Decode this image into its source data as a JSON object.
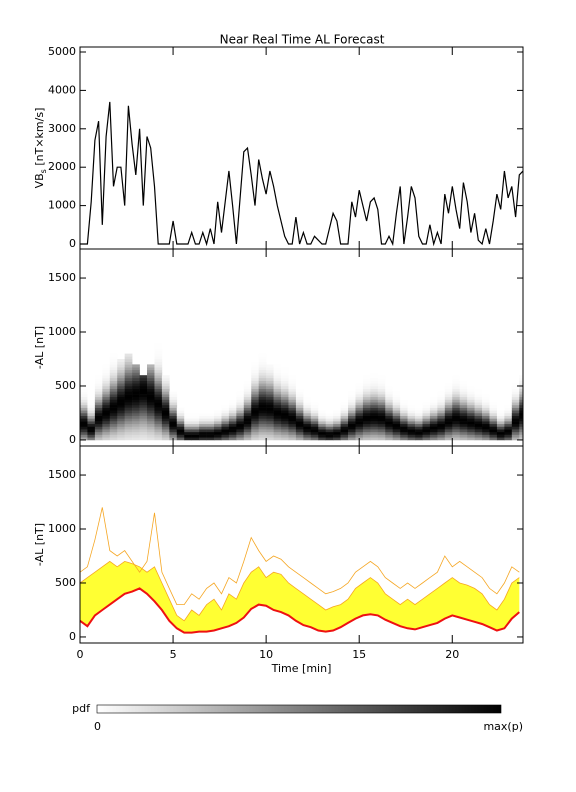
{
  "title": "Near Real Time AL Forecast",
  "chart_data": [
    {
      "type": "line",
      "ylabel": [
        "VB",
        "s",
        " [nT×km/s]"
      ],
      "color": "#000000",
      "xlim": [
        0,
        23.8
      ],
      "ylim": [
        -130,
        5130
      ],
      "xticks": [
        0,
        5,
        10,
        15,
        20
      ],
      "xticklabels": false,
      "yticks": [
        0,
        1000,
        2000,
        3000,
        4000,
        5000
      ],
      "x": [
        0,
        0.2,
        0.4,
        0.6,
        0.8,
        1,
        1.2,
        1.4,
        1.6,
        1.8,
        2,
        2.2,
        2.4,
        2.6,
        2.8,
        3,
        3.2,
        3.4,
        3.6,
        3.8,
        4,
        4.2,
        4.4,
        4.6,
        4.8,
        5,
        5.2,
        5.4,
        5.6,
        5.8,
        6,
        6.2,
        6.4,
        6.6,
        6.8,
        7,
        7.2,
        7.4,
        7.6,
        7.8,
        8,
        8.2,
        8.4,
        8.6,
        8.8,
        9,
        9.2,
        9.4,
        9.6,
        9.8,
        10,
        10.2,
        10.4,
        10.6,
        10.8,
        11,
        11.2,
        11.4,
        11.6,
        11.8,
        12,
        12.2,
        12.4,
        12.6,
        12.8,
        13,
        13.2,
        13.4,
        13.6,
        13.8,
        14,
        14.2,
        14.4,
        14.6,
        14.8,
        15,
        15.2,
        15.4,
        15.6,
        15.8,
        16,
        16.2,
        16.4,
        16.6,
        16.8,
        17,
        17.2,
        17.4,
        17.6,
        17.8,
        18,
        18.2,
        18.4,
        18.6,
        18.8,
        19,
        19.2,
        19.4,
        19.6,
        19.8,
        20,
        20.2,
        20.4,
        20.6,
        20.8,
        21,
        21.2,
        21.4,
        21.6,
        21.8,
        22,
        22.2,
        22.4,
        22.6,
        22.8,
        23,
        23.2,
        23.4,
        23.6,
        23.8
      ],
      "values": [
        0,
        0,
        0,
        1100,
        2700,
        3200,
        500,
        2800,
        3700,
        1500,
        2000,
        2000,
        1000,
        3600,
        2600,
        1800,
        3000,
        1000,
        2800,
        2500,
        1500,
        0,
        0,
        0,
        0,
        600,
        0,
        0,
        0,
        0,
        300,
        0,
        0,
        300,
        0,
        400,
        0,
        1100,
        300,
        1100,
        1900,
        1000,
        0,
        1200,
        2400,
        2500,
        1800,
        1000,
        2200,
        1700,
        1300,
        1900,
        1500,
        1000,
        600,
        200,
        0,
        0,
        700,
        0,
        300,
        0,
        0,
        200,
        100,
        0,
        0,
        400,
        800,
        600,
        0,
        0,
        0,
        1100,
        700,
        1400,
        1000,
        600,
        1100,
        1200,
        900,
        0,
        0,
        200,
        0,
        800,
        1500,
        0,
        700,
        1500,
        1200,
        200,
        0,
        0,
        500,
        0,
        300,
        0,
        1300,
        800,
        1500,
        900,
        400,
        1600,
        1100,
        300,
        800,
        100,
        0,
        400,
        0,
        600,
        1300,
        900,
        1900,
        1200,
        1500,
        700,
        1800,
        1900
      ]
    },
    {
      "type": "density",
      "ylabel": "-AL [nT]",
      "xlim": [
        0,
        23.8
      ],
      "ylim": [
        -56,
        1769
      ],
      "xticks": [
        0,
        5,
        10,
        15,
        20
      ],
      "xticklabels": false,
      "yticks": [
        0,
        500,
        1000,
        1500
      ],
      "x": [
        0,
        0.4,
        0.8,
        1.2,
        1.6,
        2,
        2.4,
        2.8,
        3.2,
        3.6,
        4,
        4.4,
        4.8,
        5.2,
        5.6,
        6,
        6.4,
        6.8,
        7.2,
        7.6,
        8,
        8.4,
        8.8,
        9.2,
        9.6,
        10,
        10.4,
        10.8,
        11.2,
        11.6,
        12,
        12.4,
        12.8,
        13.2,
        13.6,
        14,
        14.4,
        14.8,
        15.2,
        15.6,
        16,
        16.4,
        16.8,
        17.2,
        17.6,
        18,
        18.4,
        18.8,
        19.2,
        19.6,
        20,
        20.4,
        20.8,
        21.2,
        21.6,
        22,
        22.4,
        22.8,
        23.2,
        23.6
      ],
      "center": [
        150,
        100,
        200,
        250,
        300,
        350,
        400,
        420,
        450,
        400,
        330,
        250,
        150,
        80,
        40,
        40,
        50,
        50,
        60,
        80,
        100,
        130,
        180,
        260,
        300,
        290,
        250,
        230,
        200,
        150,
        110,
        90,
        60,
        50,
        60,
        90,
        130,
        170,
        200,
        210,
        200,
        160,
        130,
        100,
        80,
        70,
        90,
        110,
        130,
        170,
        200,
        180,
        160,
        140,
        120,
        90,
        60,
        80,
        170,
        230
      ],
      "upper": [
        600,
        650,
        900,
        1200,
        800,
        750,
        800,
        700,
        600,
        700,
        1150,
        600,
        450,
        300,
        300,
        400,
        350,
        450,
        500,
        400,
        550,
        500,
        700,
        920,
        800,
        700,
        750,
        720,
        650,
        600,
        550,
        500,
        450,
        400,
        420,
        450,
        500,
        600,
        650,
        700,
        650,
        550,
        500,
        450,
        500,
        450,
        500,
        550,
        600,
        750,
        650,
        700,
        650,
        600,
        550,
        450,
        400,
        500,
        650,
        600
      ]
    },
    {
      "type": "band",
      "ylabel": "-AL [nT]",
      "xlabel": "Time [min]",
      "colors": {
        "median": "#ee1111",
        "band": "#ffff33",
        "max": "#f5a623"
      },
      "xlim": [
        0,
        23.8
      ],
      "ylim": [
        -56,
        1769
      ],
      "xticks": [
        0,
        5,
        10,
        15,
        20
      ],
      "xticklabels": true,
      "yticks": [
        0,
        500,
        1000,
        1500
      ],
      "x": [
        0,
        0.4,
        0.8,
        1.2,
        1.6,
        2,
        2.4,
        2.8,
        3.2,
        3.6,
        4,
        4.4,
        4.8,
        5.2,
        5.6,
        6,
        6.4,
        6.8,
        7.2,
        7.6,
        8,
        8.4,
        8.8,
        9.2,
        9.6,
        10,
        10.4,
        10.8,
        11.2,
        11.6,
        12,
        12.4,
        12.8,
        13.2,
        13.6,
        14,
        14.4,
        14.8,
        15.2,
        15.6,
        16,
        16.4,
        16.8,
        17.2,
        17.6,
        18,
        18.4,
        18.8,
        19.2,
        19.6,
        20,
        20.4,
        20.8,
        21.2,
        21.6,
        22,
        22.4,
        22.8,
        23.2,
        23.6
      ],
      "median": [
        150,
        100,
        200,
        250,
        300,
        350,
        400,
        420,
        450,
        400,
        330,
        250,
        150,
        80,
        40,
        40,
        50,
        50,
        60,
        80,
        100,
        130,
        180,
        260,
        300,
        290,
        250,
        230,
        200,
        150,
        110,
        90,
        60,
        50,
        60,
        90,
        130,
        170,
        200,
        210,
        200,
        160,
        130,
        100,
        80,
        70,
        90,
        110,
        130,
        170,
        200,
        180,
        160,
        140,
        120,
        90,
        60,
        80,
        170,
        230
      ],
      "upper": [
        500,
        550,
        600,
        650,
        700,
        650,
        700,
        680,
        650,
        600,
        650,
        500,
        350,
        200,
        150,
        250,
        200,
        300,
        350,
        250,
        400,
        350,
        500,
        600,
        650,
        550,
        600,
        580,
        500,
        450,
        400,
        350,
        300,
        250,
        280,
        300,
        350,
        450,
        500,
        550,
        500,
        400,
        350,
        300,
        350,
        300,
        350,
        400,
        450,
        500,
        550,
        500,
        480,
        450,
        400,
        300,
        250,
        350,
        500,
        550
      ],
      "max": [
        600,
        650,
        900,
        1200,
        800,
        750,
        800,
        700,
        600,
        700,
        1150,
        600,
        450,
        300,
        300,
        400,
        350,
        450,
        500,
        400,
        550,
        500,
        700,
        920,
        800,
        700,
        750,
        720,
        650,
        600,
        550,
        500,
        450,
        400,
        420,
        450,
        500,
        600,
        650,
        700,
        650,
        550,
        500,
        450,
        500,
        450,
        500,
        550,
        600,
        750,
        650,
        700,
        650,
        600,
        550,
        450,
        400,
        500,
        650,
        600
      ]
    }
  ],
  "colorbar": {
    "label": "pdf",
    "min_label": "0",
    "max_label": "max(p)"
  }
}
